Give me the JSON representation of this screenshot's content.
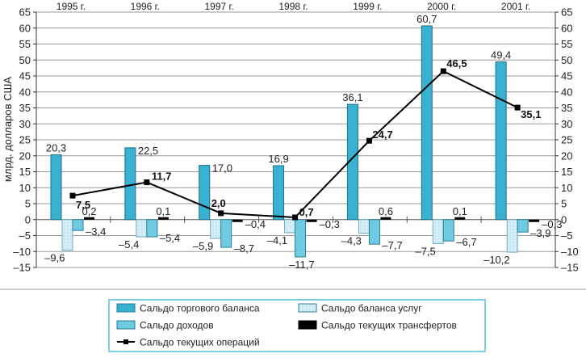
{
  "chart_data": {
    "type": "bar",
    "title": "",
    "ylabel": "млрд. долларов США",
    "xlabel": "",
    "ylim": [
      -15,
      65
    ],
    "yticks": [
      65,
      60,
      55,
      50,
      45,
      40,
      35,
      30,
      25,
      20,
      15,
      10,
      5,
      0,
      -5,
      -10,
      -15
    ],
    "grid": true,
    "categories": [
      "1995 г.",
      "1996 г.",
      "1997 г.",
      "1998 г.",
      "1999 г.",
      "2000 г.",
      "2001 г."
    ],
    "series": [
      {
        "name": "Сальдо торгового баланса",
        "kind": "bar",
        "color": "#38b2d0",
        "values": [
          20.3,
          22.5,
          17.0,
          16.9,
          36.1,
          60.7,
          49.4
        ]
      },
      {
        "name": "Сальдо баланса услуг",
        "kind": "bar",
        "color": "#cdeaf5",
        "values": [
          -9.6,
          -5.4,
          -5.9,
          -4.1,
          -4.3,
          -7.5,
          -10.2
        ]
      },
      {
        "name": "Сальдо доходов",
        "kind": "bar",
        "color": "#6ecbe2",
        "values": [
          -3.4,
          -5.4,
          -8.7,
          -11.7,
          -7.7,
          -6.7,
          -3.9
        ]
      },
      {
        "name": "Сальдо текущих трансфертов",
        "kind": "bar",
        "color": "#000000",
        "values": [
          0.2,
          0.1,
          -0.4,
          -0.3,
          0.6,
          0.1,
          -0.3
        ]
      },
      {
        "name": "Сальдо текущих операций",
        "kind": "line",
        "color": "#000000",
        "values": [
          7.5,
          11.7,
          2.0,
          0.7,
          24.7,
          46.5,
          35.1
        ]
      }
    ],
    "legend_position": "bottom"
  }
}
